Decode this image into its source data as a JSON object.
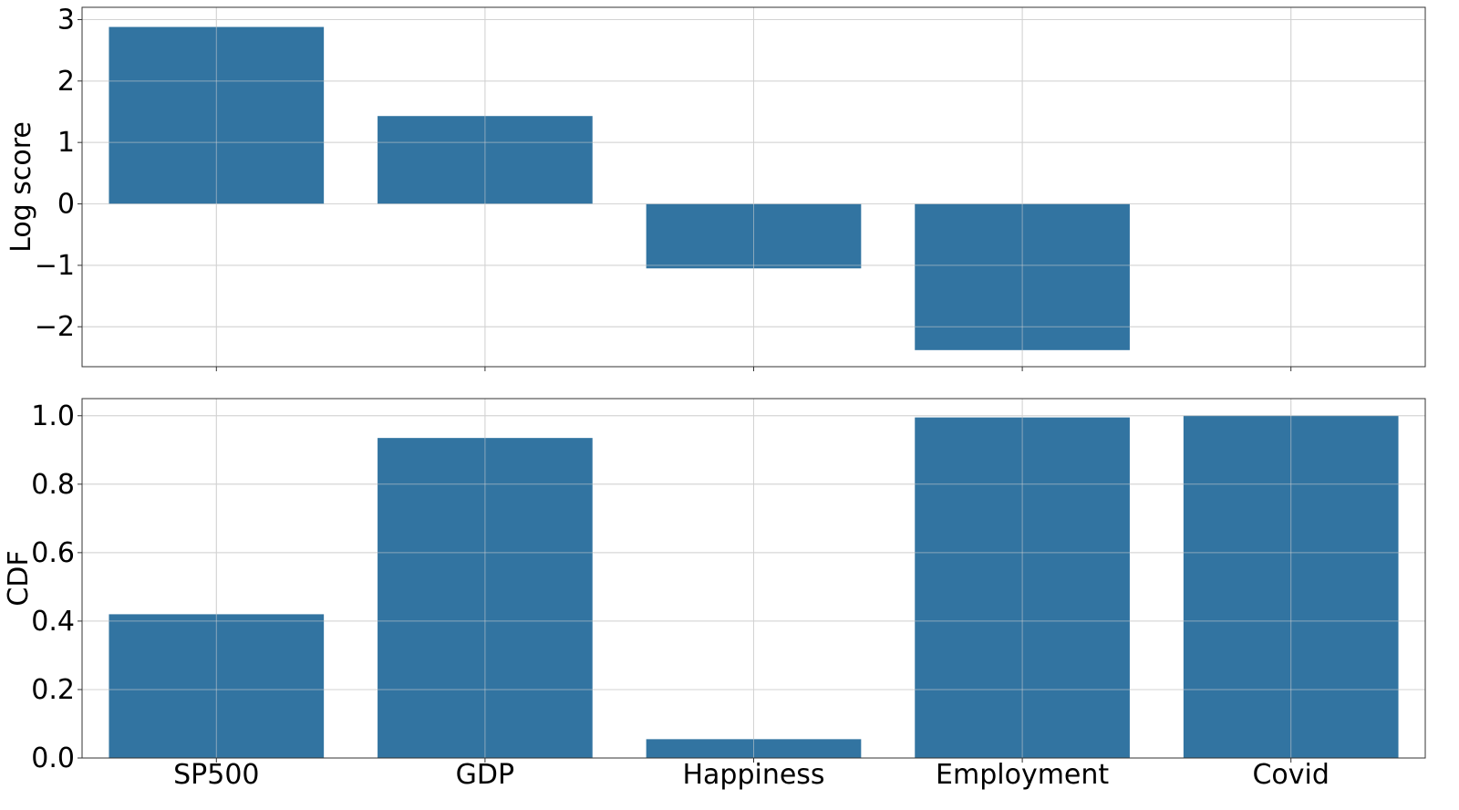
{
  "chart_data": [
    {
      "type": "bar",
      "title": "",
      "xlabel": "",
      "ylabel": "Log score",
      "categories": [
        "SP500",
        "GDP",
        "Happiness",
        "Employment",
        "Covid"
      ],
      "values": [
        2.88,
        1.43,
        -1.05,
        -2.38,
        null
      ],
      "ylim": [
        -2.65,
        3.2
      ],
      "yticks": [
        3,
        2,
        1,
        0,
        -1,
        -2
      ],
      "ytick_labels": [
        "3",
        "2",
        "1",
        "0",
        "−1",
        "−2"
      ],
      "show_xtick_labels": false,
      "grid": true,
      "bar_color": "#3274a1"
    },
    {
      "type": "bar",
      "title": "",
      "xlabel": "",
      "ylabel": "CDF",
      "categories": [
        "SP500",
        "GDP",
        "Happiness",
        "Employment",
        "Covid"
      ],
      "values": [
        0.42,
        0.935,
        0.055,
        0.995,
        1.0
      ],
      "ylim": [
        0.0,
        1.05
      ],
      "yticks": [
        0.0,
        0.2,
        0.4,
        0.6,
        0.8,
        1.0
      ],
      "ytick_labels": [
        "0.0",
        "0.2",
        "0.4",
        "0.6",
        "0.8",
        "1.0"
      ],
      "show_xtick_labels": true,
      "grid": true,
      "bar_color": "#3274a1"
    }
  ]
}
